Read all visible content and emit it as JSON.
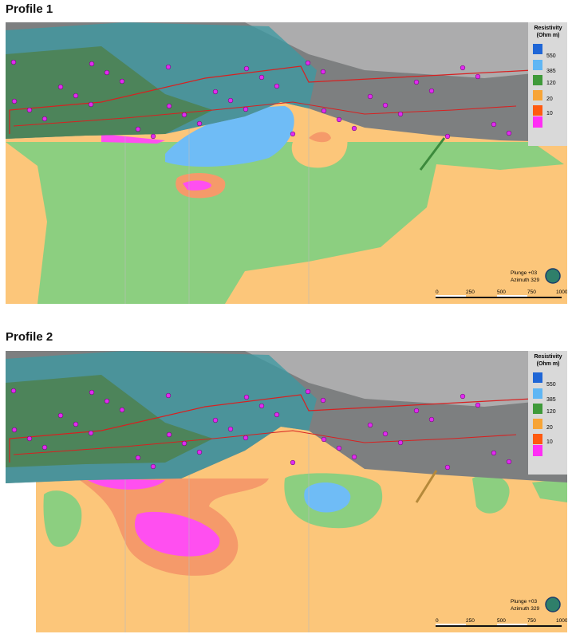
{
  "profiles": [
    {
      "title": "Profile 1",
      "legend": {
        "title_line1": "Resistivity",
        "title_line2": "(Ohm m)",
        "labels": [
          550,
          385,
          120,
          20,
          10
        ]
      },
      "view": {
        "plunge": "Plunge +03",
        "azimuth": "Azimuth 329"
      },
      "scale_bar": {
        "labels": [
          0,
          250,
          500,
          750,
          1000
        ]
      }
    },
    {
      "title": "Profile 2",
      "legend": {
        "title_line1": "Resistivity",
        "title_line2": "(Ohm m)",
        "labels": [
          550,
          385,
          120,
          20,
          10
        ]
      },
      "view": {
        "plunge": "Plunge +03",
        "azimuth": "Azimuth 329"
      },
      "scale_bar": {
        "labels": [
          0,
          250,
          500,
          750,
          1000
        ]
      }
    }
  ]
}
